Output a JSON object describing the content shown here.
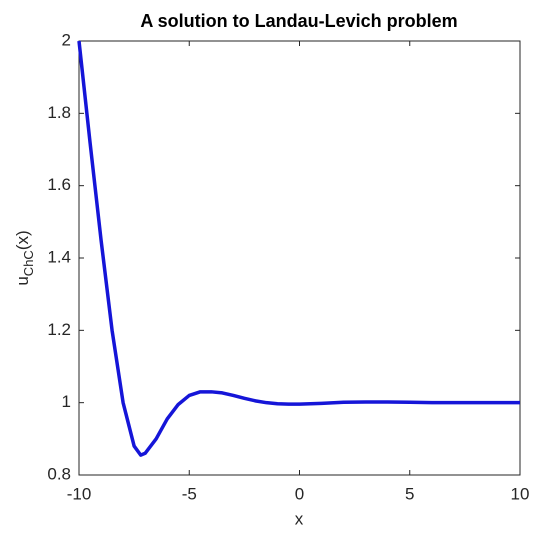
{
  "chart_data": {
    "type": "line",
    "title": "A solution to Landau-Levich problem",
    "xlabel": "x",
    "ylabel": {
      "base": "u",
      "subscript": "ChC",
      "suffix": "(x)"
    },
    "x": [
      -10,
      -9.5,
      -9,
      -8.5,
      -8,
      -7.5,
      -7.2,
      -7,
      -6.5,
      -6,
      -5.5,
      -5,
      -4.5,
      -4,
      -3.5,
      -3,
      -2.5,
      -2,
      -1.5,
      -1,
      -0.5,
      0,
      1,
      2,
      3,
      4,
      5,
      6,
      8,
      10
    ],
    "series": [
      {
        "color": "#1515d8",
        "values": [
          2.0,
          1.72,
          1.45,
          1.2,
          1.0,
          0.88,
          0.855,
          0.86,
          0.9,
          0.955,
          0.995,
          1.02,
          1.03,
          1.03,
          1.027,
          1.02,
          1.012,
          1.005,
          1.0,
          0.997,
          0.996,
          0.996,
          0.998,
          1.001,
          1.002,
          1.002,
          1.001,
          1.0,
          1.0,
          1.0
        ]
      }
    ],
    "xlim": [
      -10,
      10
    ],
    "xticks": [
      -10,
      -5,
      0,
      5,
      10
    ],
    "ylim": [
      0.8,
      2
    ],
    "yticks": [
      0.8,
      1,
      1.2,
      1.4,
      1.6,
      1.8,
      2
    ]
  }
}
